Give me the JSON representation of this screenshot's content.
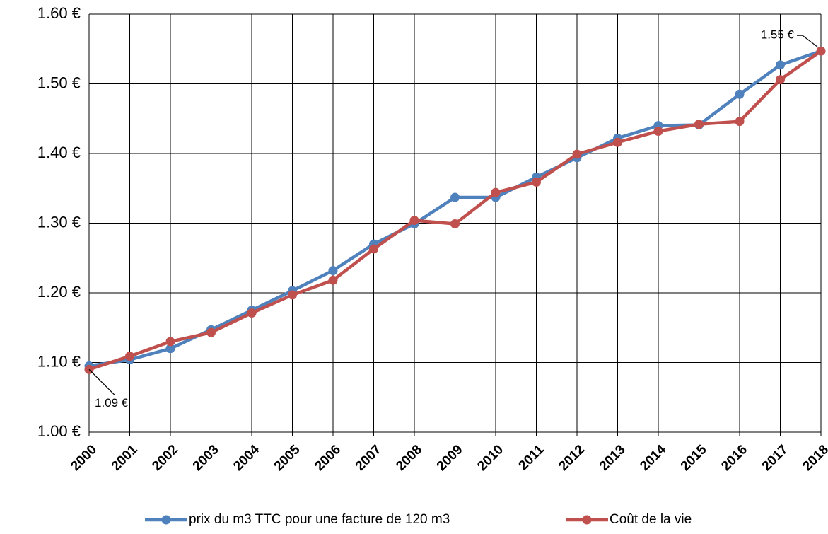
{
  "chart_data": {
    "type": "line",
    "categories": [
      "2000",
      "2001",
      "2002",
      "2003",
      "2004",
      "2005",
      "2006",
      "2007",
      "2008",
      "2009",
      "2010",
      "2011",
      "2012",
      "2013",
      "2014",
      "2015",
      "2016",
      "2017",
      "2018"
    ],
    "series": [
      {
        "name": "prix du m3 TTC pour une facture de 120 m3",
        "color": "#4f81bd",
        "values": [
          1.095,
          1.104,
          1.12,
          1.147,
          1.175,
          1.203,
          1.232,
          1.27,
          1.299,
          1.337,
          1.337,
          1.366,
          1.394,
          1.422,
          1.44,
          1.441,
          1.485,
          1.527,
          1.547
        ]
      },
      {
        "name": "Coût de la vie",
        "color": "#c0504d",
        "values": [
          1.09,
          1.109,
          1.13,
          1.143,
          1.171,
          1.197,
          1.218,
          1.263,
          1.304,
          1.299,
          1.344,
          1.359,
          1.399,
          1.416,
          1.432,
          1.442,
          1.446,
          1.506,
          1.547
        ]
      }
    ],
    "annotations": [
      "1.09 €",
      "1.55 €"
    ],
    "ylim": [
      1.0,
      1.6
    ],
    "yticks": [
      {
        "value": 1.0,
        "label": "1.00 €"
      },
      {
        "value": 1.1,
        "label": "1.10 €"
      },
      {
        "value": 1.2,
        "label": "1.20 €"
      },
      {
        "value": 1.3,
        "label": "1.30 €"
      },
      {
        "value": 1.4,
        "label": "1.40 €"
      },
      {
        "value": 1.5,
        "label": "1.50 €"
      },
      {
        "value": 1.6,
        "label": "1.60 €"
      }
    ],
    "grid": true,
    "legend": "bottom"
  }
}
